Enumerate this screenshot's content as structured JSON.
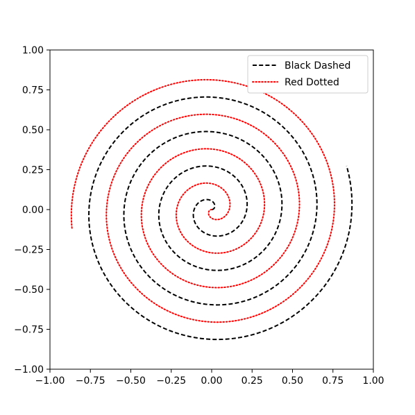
{
  "chart_data": {
    "type": "line",
    "title": "",
    "xlabel": "",
    "ylabel": "",
    "xlim": [
      -1.0,
      1.0
    ],
    "ylim": [
      -1.0,
      1.0
    ],
    "grid": false,
    "legend_position": "top-right",
    "x_ticks": [
      "−1.00",
      "−0.75",
      "−0.50",
      "−0.25",
      "0.00",
      "0.25",
      "0.50",
      "0.75",
      "1.00"
    ],
    "x_tick_values": [
      -1.0,
      -0.75,
      -0.5,
      -0.25,
      0.0,
      0.25,
      0.5,
      0.75,
      1.0
    ],
    "y_ticks": [
      "−1.00",
      "−0.75",
      "−0.50",
      "−0.25",
      "0.00",
      "0.25",
      "0.50",
      "0.75",
      "1.00"
    ],
    "y_tick_values": [
      -1.0,
      -0.75,
      -0.5,
      -0.25,
      0.0,
      0.25,
      0.5,
      0.75,
      1.0
    ],
    "series": [
      {
        "name": "Black Dashed",
        "color": "#000000",
        "style": "dashed",
        "spiral": {
          "theta_start": 0.0,
          "theta_end": 25.45,
          "r_per_radian": 0.0345,
          "rotation": 0.0
        }
      },
      {
        "name": "Red Dotted",
        "color": "#ff0000",
        "style": "dotted",
        "spiral": {
          "theta_start": 0.0,
          "theta_end": 25.28,
          "r_per_radian": 0.0345,
          "rotation": 3.14159
        }
      }
    ]
  }
}
